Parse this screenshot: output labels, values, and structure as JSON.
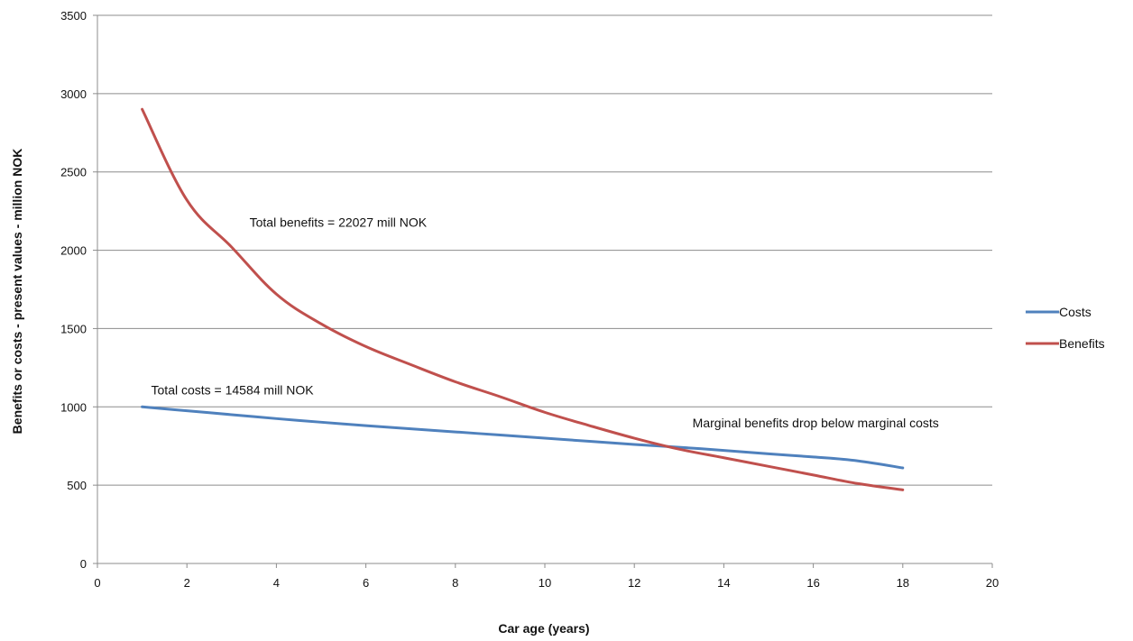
{
  "chart_data": {
    "type": "line",
    "xlabel": "Car age (years)",
    "ylabel": "Benefits or costs - present values - million NOK",
    "xlim": [
      0,
      20
    ],
    "ylim": [
      0,
      3500
    ],
    "xticks": [
      0,
      2,
      4,
      6,
      8,
      10,
      12,
      14,
      16,
      18,
      20
    ],
    "yticks": [
      0,
      500,
      1000,
      1500,
      2000,
      2500,
      3000,
      3500
    ],
    "grid": "horizontal",
    "legend_position": "right",
    "series": [
      {
        "name": "Costs",
        "color": "#4f81bd",
        "x": [
          1,
          2,
          3,
          4,
          5,
          6,
          7,
          8,
          9,
          10,
          11,
          12,
          13,
          14,
          15,
          16,
          17,
          18
        ],
        "y": [
          1000,
          975,
          950,
          925,
          902,
          880,
          860,
          840,
          820,
          800,
          780,
          760,
          742,
          722,
          700,
          680,
          655,
          610
        ]
      },
      {
        "name": "Benefits",
        "color": "#c0504d",
        "x": [
          1,
          2,
          3,
          4,
          5,
          6,
          7,
          8,
          9,
          10,
          11,
          12,
          13,
          14,
          15,
          16,
          17,
          18
        ],
        "y": [
          2900,
          2320,
          2020,
          1720,
          1530,
          1385,
          1270,
          1160,
          1065,
          965,
          880,
          800,
          730,
          675,
          620,
          565,
          510,
          470
        ]
      }
    ],
    "annotations": [
      {
        "text": "Total benefits = 22027 mill NOK",
        "x": 3.4,
        "y": 2150
      },
      {
        "text": "Total costs = 14584 mill NOK",
        "x": 1.2,
        "y": 1080
      },
      {
        "text": "Marginal benefits drop below marginal costs",
        "x": 13.3,
        "y": 870
      }
    ]
  }
}
